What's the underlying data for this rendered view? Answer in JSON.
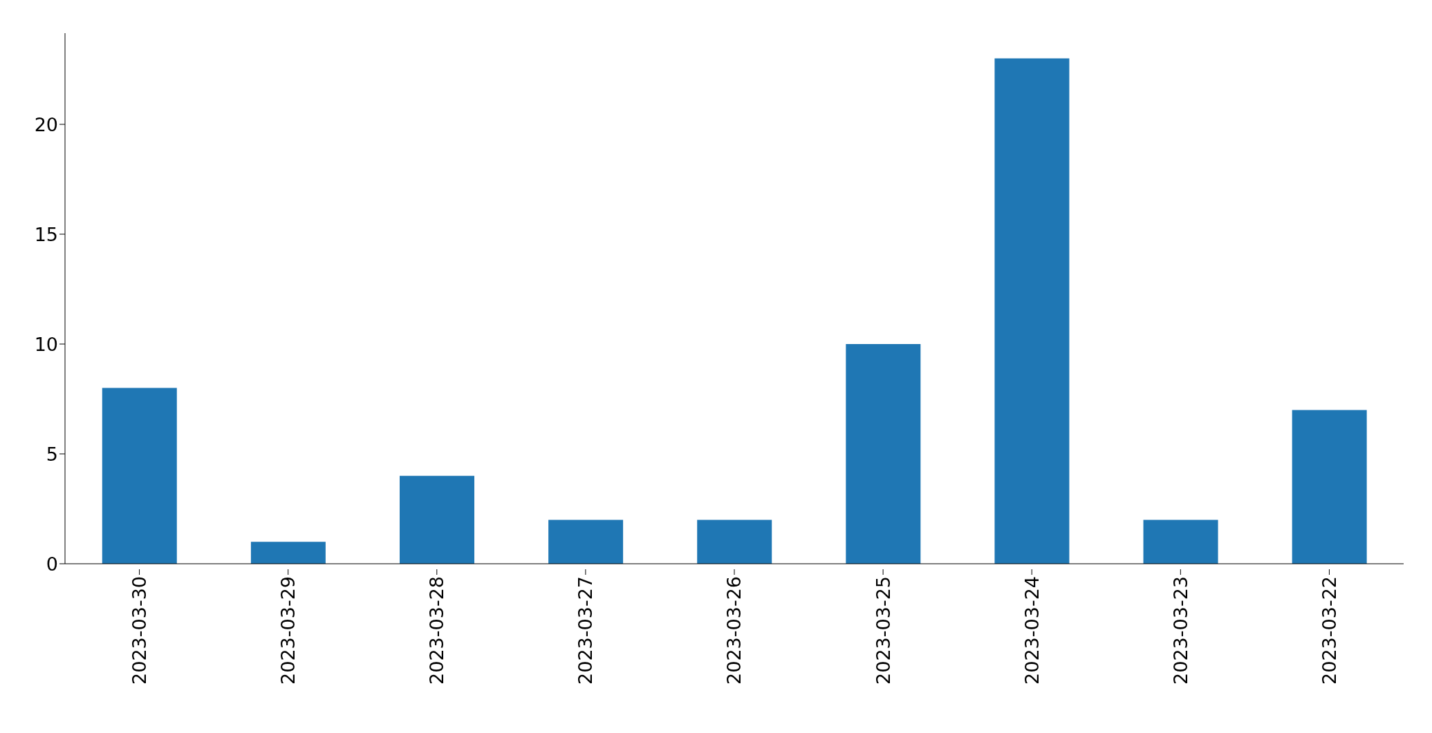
{
  "chart_data": {
    "type": "bar",
    "categories": [
      "2023-03-30",
      "2023-03-29",
      "2023-03-28",
      "2023-03-27",
      "2023-03-26",
      "2023-03-25",
      "2023-03-24",
      "2023-03-23",
      "2023-03-22"
    ],
    "values": [
      8,
      1,
      4,
      2,
      2,
      10,
      23,
      2,
      7
    ],
    "color": "#1f77b4",
    "ylim": [
      0,
      24.15
    ],
    "yticks": [
      0,
      5,
      10,
      15,
      20
    ],
    "grid": false,
    "legend": false
  }
}
